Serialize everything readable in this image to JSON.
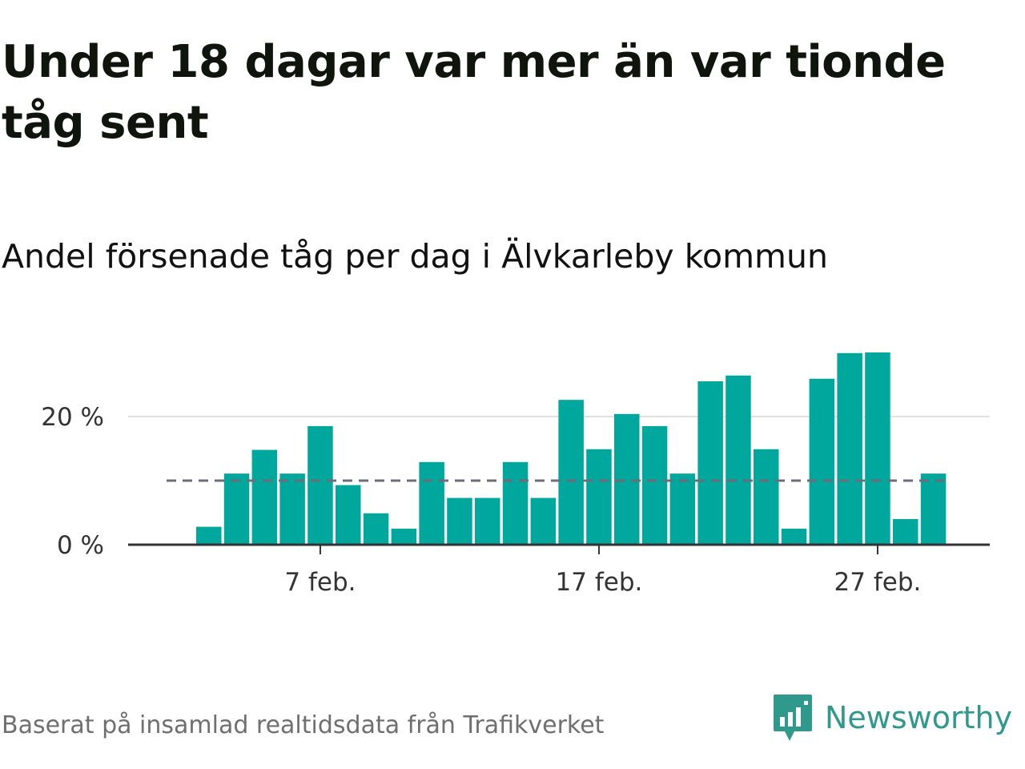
{
  "title": "Under 18 dagar var mer än var tionde tåg sent",
  "subtitle": "Andel försenade tåg per dag i Älvkarleby kommun",
  "footer": {
    "source": "Baserat på insamlad realtidsdata från Trafikverket",
    "brand": "Newsworthy"
  },
  "colors": {
    "bar": "#00a79d",
    "reference_line": "#6e6e78",
    "brand": "#2f9a8b"
  },
  "chart_data": {
    "type": "bar",
    "title": "Under 18 dagar var mer än var tionde tåg sent",
    "subtitle": "Andel försenade tåg per dag i Älvkarleby kommun",
    "x": [
      "2020-02-01",
      "2020-02-02",
      "2020-02-03",
      "2020-02-04",
      "2020-02-05",
      "2020-02-06",
      "2020-02-07",
      "2020-02-08",
      "2020-02-09",
      "2020-02-10",
      "2020-02-11",
      "2020-02-12",
      "2020-02-13",
      "2020-02-14",
      "2020-02-15",
      "2020-02-16",
      "2020-02-17",
      "2020-02-18",
      "2020-02-19",
      "2020-02-20",
      "2020-02-21",
      "2020-02-22",
      "2020-02-23",
      "2020-02-24",
      "2020-02-25",
      "2020-02-26",
      "2020-02-27",
      "2020-02-28",
      "2020-02-29"
    ],
    "values": [
      null,
      null,
      2.8,
      11.1,
      14.8,
      11.1,
      18.5,
      9.3,
      4.9,
      2.5,
      12.9,
      7.3,
      7.3,
      12.9,
      7.3,
      22.6,
      14.9,
      20.4,
      18.5,
      11.1,
      25.5,
      26.4,
      14.9,
      2.5,
      25.9,
      29.9,
      30.0,
      4.0,
      11.1
    ],
    "unit": "%",
    "y_ticks": [
      {
        "value": 0,
        "label": "0 %"
      },
      {
        "value": 20,
        "label": "20 %"
      }
    ],
    "x_ticks": [
      {
        "date": "2020-02-07",
        "label": "7 feb."
      },
      {
        "date": "2020-02-17",
        "label": "17 feb."
      },
      {
        "date": "2020-02-27",
        "label": "27 feb."
      }
    ],
    "reference_line": 10,
    "ylim": [
      0,
      33
    ],
    "xlabel": "",
    "ylabel": "",
    "grid": true,
    "legend": "none"
  }
}
